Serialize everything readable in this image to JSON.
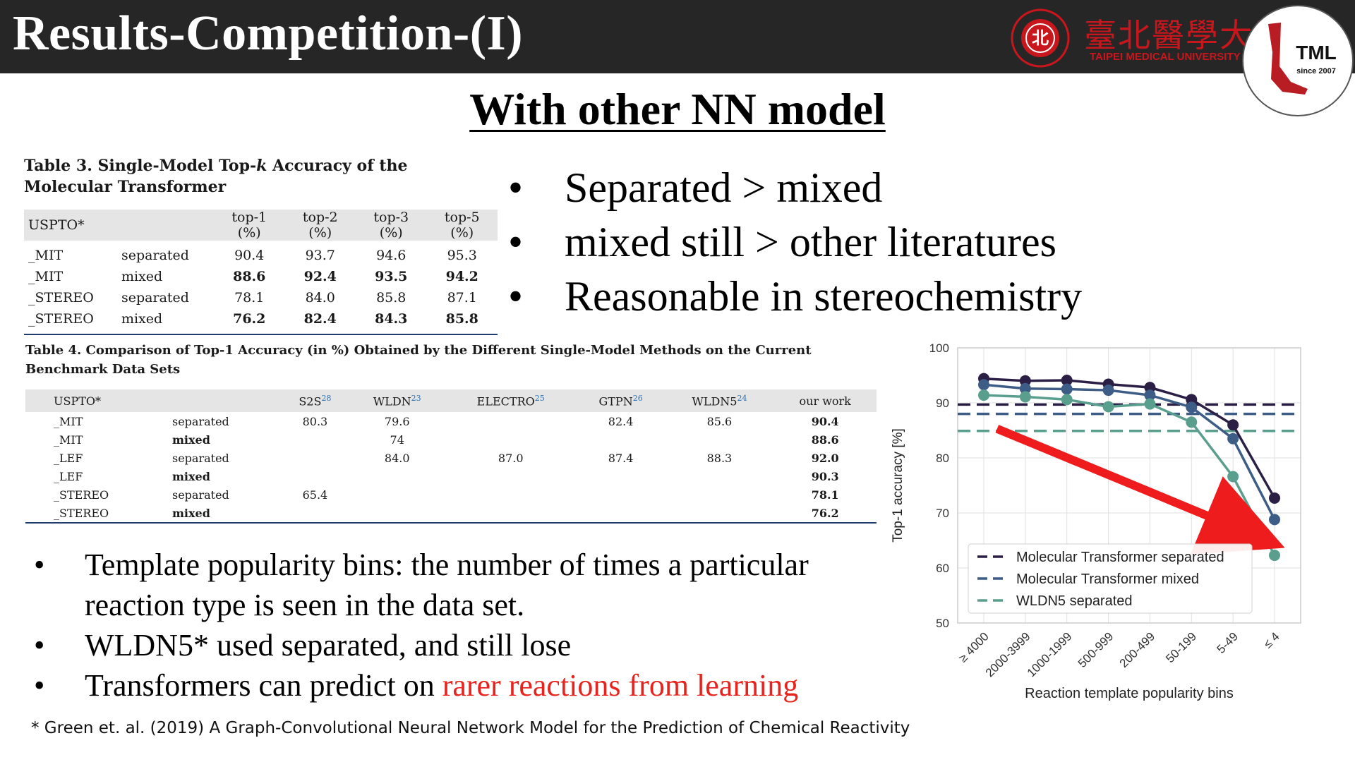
{
  "header": {
    "title": "Results-Competition-(I)",
    "tmu_name_cn": "臺北醫學大學",
    "tmu_name_en": "TAIPEI MEDICAL UNIVERSITY",
    "tml_logo_text": "TML",
    "tml_since": "since 2007",
    "colors": {
      "bar": "#262626",
      "tmu_red": "#c8161d"
    }
  },
  "subtitle": "With other NN model",
  "table3": {
    "caption_pre": "Table 3. Single-Model Top-",
    "caption_k": "k",
    "caption_post": " Accuracy of the Molecular Transformer",
    "headers": [
      "USPTO*",
      "",
      "top-1 (%)",
      "top-2 (%)",
      "top-3 (%)",
      "top-5 (%)"
    ],
    "rows": [
      [
        "_MIT",
        "separated",
        "90.4",
        "93.7",
        "94.6",
        "95.3"
      ],
      [
        "_MIT",
        "mixed",
        "88.6",
        "92.4",
        "93.5",
        "94.2"
      ],
      [
        "_STEREO",
        "separated",
        "78.1",
        "84.0",
        "85.8",
        "87.1"
      ],
      [
        "_STEREO",
        "mixed",
        "76.2",
        "82.4",
        "84.3",
        "85.8"
      ]
    ]
  },
  "table4": {
    "caption": "Table 4. Comparison of Top-1 Accuracy (in %) Obtained by the Different Single-Model Methods on the Current Benchmark Data Sets",
    "headers": [
      {
        "label": "USPTO*",
        "ref": ""
      },
      {
        "label": "",
        "ref": ""
      },
      {
        "label": "S2S",
        "ref": "28"
      },
      {
        "label": "WLDN",
        "ref": "23"
      },
      {
        "label": "ELECTRO",
        "ref": "25"
      },
      {
        "label": "GTPN",
        "ref": "26"
      },
      {
        "label": "WLDN5",
        "ref": "24"
      },
      {
        "label": "our work",
        "ref": ""
      }
    ],
    "rows": [
      [
        "_MIT",
        "separated",
        "80.3",
        "79.6",
        "",
        "82.4",
        "85.6",
        "90.4"
      ],
      [
        "_MIT",
        "mixed",
        "",
        "74",
        "",
        "",
        "",
        "88.6"
      ],
      [
        "_LEF",
        "separated",
        "",
        "84.0",
        "87.0",
        "87.4",
        "88.3",
        "92.0"
      ],
      [
        "_LEF",
        "mixed",
        "",
        "",
        "",
        "",
        "",
        "90.3"
      ],
      [
        "_STEREO",
        "separated",
        "65.4",
        "",
        "",
        "",
        "",
        "78.1"
      ],
      [
        "_STEREO",
        "mixed",
        "",
        "",
        "",
        "",
        "",
        "76.2"
      ]
    ]
  },
  "bullets_right": [
    "Separated > mixed",
    "mixed still > other literatures",
    "Reasonable in stereochemistry"
  ],
  "bullets_left": {
    "b1": "Template popularity bins: the number of times a particular reaction type is seen in the data set.",
    "b2": "WLDN5* used separated, and still lose",
    "b3_black": "Transformers can predict on ",
    "b3_red": "rarer reactions from learning",
    "red_color": "#e8231d"
  },
  "bullet_symbol": "•",
  "footnote": "* Green et. al. (2019) A Graph-Convolutional Neural Network Model for the Prediction of Chemical Reactivity",
  "chart_data": {
    "type": "line",
    "xlabel": "Reaction template popularity bins",
    "ylabel": "Top-1 accuracy [%]",
    "categories": [
      "≥ 4000",
      "2000-3999",
      "1000-1999",
      "500-999",
      "200-499",
      "50-199",
      "5-49",
      "≤ 4"
    ],
    "ylim": [
      50,
      100
    ],
    "yticks": [
      50,
      60,
      70,
      80,
      90,
      100
    ],
    "grid": true,
    "legend_position": "bottom-left",
    "series": [
      {
        "name": "Molecular Transformer separated",
        "color": "#2b1f45",
        "values": [
          94.4,
          94.0,
          94.1,
          93.4,
          92.8,
          90.6,
          86.0,
          72.7
        ],
        "reference": 89.7
      },
      {
        "name": "Molecular Transformer mixed",
        "color": "#3d5c86",
        "values": [
          93.3,
          92.6,
          92.5,
          92.3,
          91.4,
          89.2,
          83.5,
          68.8
        ],
        "reference": 88.0
      },
      {
        "name": "WLDN5 separated",
        "color": "#5a9f8e",
        "values": [
          91.4,
          91.1,
          90.6,
          89.3,
          89.8,
          86.5,
          76.6,
          62.3
        ],
        "reference": 84.9
      }
    ],
    "annotation": "red arrow pointing down toward rarer bins"
  }
}
